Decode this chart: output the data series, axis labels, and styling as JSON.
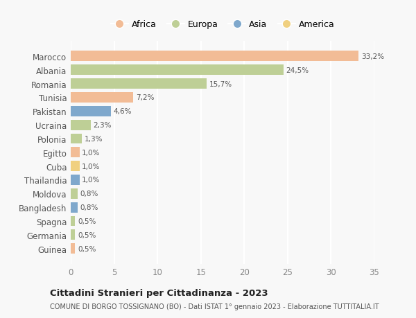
{
  "countries": [
    "Marocco",
    "Albania",
    "Romania",
    "Tunisia",
    "Pakistan",
    "Ucraina",
    "Polonia",
    "Egitto",
    "Cuba",
    "Thailandia",
    "Moldova",
    "Bangladesh",
    "Spagna",
    "Germania",
    "Guinea"
  ],
  "values": [
    33.2,
    24.5,
    15.7,
    7.2,
    4.6,
    2.3,
    1.3,
    1.0,
    1.0,
    1.0,
    0.8,
    0.8,
    0.5,
    0.5,
    0.5
  ],
  "labels": [
    "33,2%",
    "24,5%",
    "15,7%",
    "7,2%",
    "4,6%",
    "2,3%",
    "1,3%",
    "1,0%",
    "1,0%",
    "1,0%",
    "0,8%",
    "0,8%",
    "0,5%",
    "0,5%",
    "0,5%"
  ],
  "colors": [
    "#F2BC96",
    "#BECF96",
    "#BECF96",
    "#F2BC96",
    "#7FA8CC",
    "#BECF96",
    "#BECF96",
    "#F2BC96",
    "#F0D080",
    "#7FA8CC",
    "#BECF96",
    "#7FA8CC",
    "#BECF96",
    "#BECF96",
    "#F2BC96"
  ],
  "legend_labels": [
    "Africa",
    "Europa",
    "Asia",
    "America"
  ],
  "legend_colors": [
    "#F2BC96",
    "#BECF96",
    "#7FA8CC",
    "#F0D080"
  ],
  "title": "Cittadini Stranieri per Cittadinanza - 2023",
  "subtitle": "COMUNE DI BORGO TOSSIGNANO (BO) - Dati ISTAT 1° gennaio 2023 - Elaborazione TUTTITALIA.IT",
  "xlim": [
    0,
    35
  ],
  "xticks": [
    0,
    5,
    10,
    15,
    20,
    25,
    30,
    35
  ],
  "bg_color": "#f8f8f8",
  "grid_color": "#ffffff",
  "bar_height": 0.75
}
